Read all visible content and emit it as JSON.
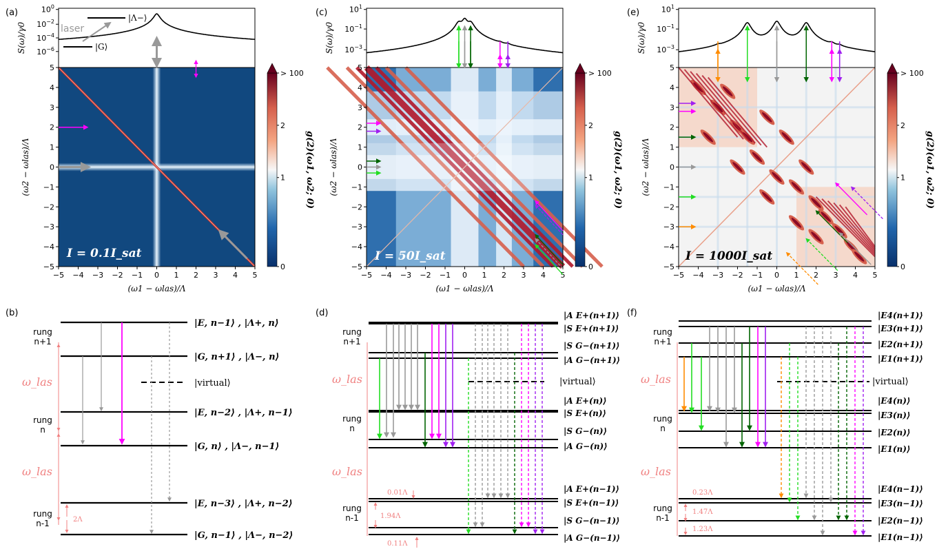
{
  "panel_labels": [
    "(a)",
    "(b)",
    "(c)",
    "(d)",
    "(e)",
    "(f)"
  ],
  "axis": {
    "xlabel": "(ω1 − ωlas)/Λ",
    "ylabel": "(ω2 − ωlas)/Λ",
    "spec_label": "S(ω)/γ0",
    "cbar_label": "g(2)(ω1, ω2; 0)",
    "cbar_ticks": [
      "> 100",
      "2",
      "1",
      "0"
    ],
    "ticks": [
      "−5",
      "−4",
      "−3",
      "−2",
      "−1",
      "0",
      "1",
      "2",
      "3",
      "4",
      "5"
    ],
    "y_ticks": [
      "−5",
      "−4",
      "−3",
      "−2",
      "−1",
      "0",
      "1",
      "2",
      "3",
      "4",
      "5"
    ]
  },
  "panel_a": {
    "spec_ticks": [
      "10^0",
      "10^-2",
      "10^-4",
      "10^-6"
    ],
    "inset_upper": "|Λ−⟩",
    "inset_lower": "|G⟩",
    "inset_laser": "laser",
    "intensity": "I = 0.1I_sat",
    "spectrum_peaks_x": [
      0.0
    ],
    "arrow_colors": [
      "#999999",
      "#ff00ff"
    ]
  },
  "panel_c": {
    "spec_ticks": [
      "10^1",
      "10^-1",
      "10^-3"
    ],
    "intensity": "I = 50I_sat",
    "spectrum_peaks_x": [
      -0.3,
      0.0,
      0.3,
      1.8,
      2.2
    ]
  },
  "panel_e": {
    "spec_ticks": [
      "10^1",
      "10^-1",
      "10^-3"
    ],
    "intensity": "I = 1000I_sat",
    "spectrum_peaks_x": [
      -3.0,
      -1.5,
      0.0,
      1.5,
      2.8,
      3.2
    ]
  },
  "panel_b": {
    "rung_labels": [
      "rung",
      "n+1",
      "rung",
      "n",
      "rung",
      "n-1"
    ],
    "omega": "ω_las",
    "gap": "2Λ",
    "levels": [
      {
        "label": "|E, n−1⟩ , |Λ+, n⟩"
      },
      {
        "label": "|G, n+1⟩ , |Λ−, n⟩"
      },
      {
        "label": "|virtual⟩"
      },
      {
        "label": "|E, n−2⟩ , |Λ+, n−1⟩"
      },
      {
        "label": "|G, n⟩ , |Λ−, n−1⟩"
      },
      {
        "label": "|E, n−3⟩ , |Λ+, n−2⟩"
      },
      {
        "label": "|G, n−1⟩ , |Λ−, n−2⟩"
      }
    ]
  },
  "panel_d": {
    "rung_labels": [
      "rung",
      "n+1",
      "rung",
      "n",
      "rung",
      "n-1"
    ],
    "omega": "ω_las",
    "virtual": "|virtual⟩",
    "levels": [
      "|A E+(n+1)⟩",
      "|S E+(n+1)⟩",
      "|S G−(n+1)⟩",
      "|A G−(n+1)⟩",
      "|A E+(n)⟩",
      "|S E+(n)⟩",
      "|S G−(n)⟩",
      "|A G−(n)⟩",
      "|A E+(n−1)⟩",
      "|S E+(n−1)⟩",
      "|S G−(n−1)⟩",
      "|A G−(n−1)⟩"
    ],
    "gaps": [
      "0.01Λ",
      "1.94Λ",
      "0.11Λ"
    ]
  },
  "panel_f": {
    "rung_labels": [
      "rung",
      "n+1",
      "rung",
      "n",
      "rung",
      "n-1"
    ],
    "omega": "ω_las",
    "virtual": "|virtual⟩",
    "levels": [
      "|E4(n+1)⟩",
      "|E3(n+1)⟩",
      "|E2(n+1)⟩",
      "|E1(n+1)⟩",
      "|E4(n)⟩",
      "|E3(n)⟩",
      "|E2(n)⟩",
      "|E1(n)⟩",
      "|E4(n−1)⟩",
      "|E3(n−1)⟩",
      "|E2(n−1)⟩",
      "|E1(n−1)⟩"
    ],
    "gaps": [
      "0.23Λ",
      "1.47Λ",
      "1.23Λ"
    ]
  },
  "colors": {
    "heat_low": "#08306b",
    "heat_one": "#f7f7f7",
    "heat_high": "#67001f",
    "gray": "#999999",
    "magenta": "#ff00ff",
    "green": "#22dd22",
    "darkgreen": "#006400",
    "orange": "#ff8c00",
    "violet": "#a020f0",
    "salmon": "#f08080"
  }
}
